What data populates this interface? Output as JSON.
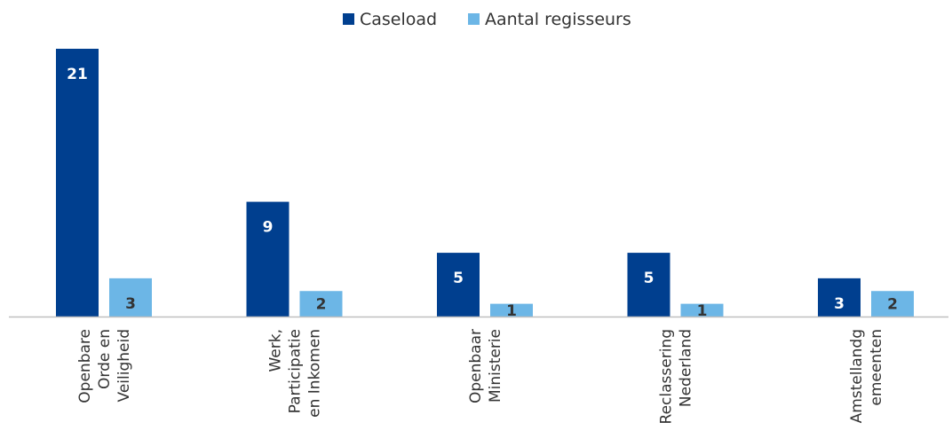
{
  "chart_data": {
    "type": "bar",
    "categories": [
      [
        "Openbare",
        "Orde en",
        "Veiligheid"
      ],
      [
        "Werk,",
        "Participatie",
        "en Inkomen"
      ],
      [
        "Openbaar",
        "Ministerie"
      ],
      [
        "Reclassering",
        "Nederland"
      ],
      [
        "Amstellandg",
        "emeenten"
      ]
    ],
    "series": [
      {
        "name": "Caseload",
        "color": "#003f8f",
        "label_color": "#ffffff",
        "values": [
          21,
          9,
          5,
          5,
          3
        ]
      },
      {
        "name": "Aantal regisseurs",
        "color": "#6cb6e6",
        "label_color": "#333333",
        "values": [
          3,
          2,
          1,
          1,
          2
        ]
      }
    ],
    "ylim": [
      0,
      21
    ],
    "grid": false,
    "legend": "top-center",
    "data_labels": true,
    "axis_color": "#bfbfbf"
  }
}
